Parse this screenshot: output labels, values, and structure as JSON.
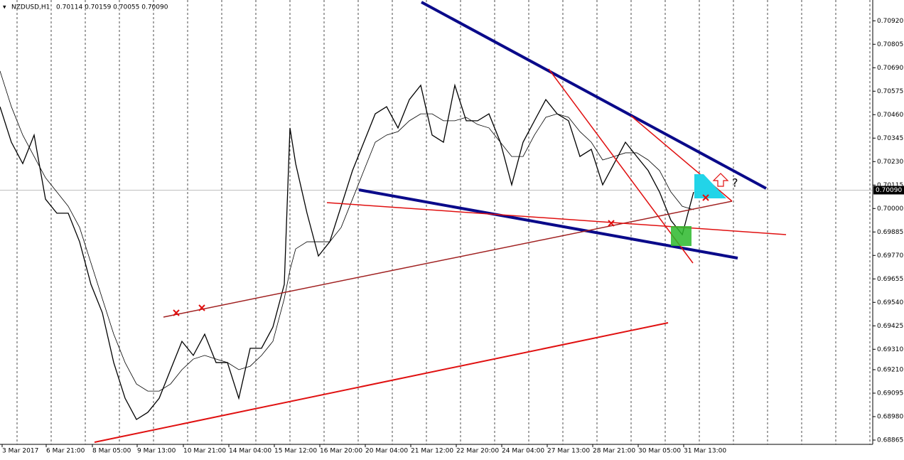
{
  "header": {
    "symbol": "NZDUSD,H1",
    "ohlc": "0.70114 0.70159 0.70055 0.70090"
  },
  "chart_data": {
    "type": "line",
    "x": [
      0,
      16,
      32,
      48,
      64,
      80,
      96,
      112,
      128,
      144,
      160,
      176,
      192,
      208,
      224,
      240,
      256,
      272,
      288,
      304,
      320,
      336,
      352,
      368,
      384,
      400,
      408,
      416,
      432,
      448,
      464,
      480,
      496,
      512,
      528,
      544,
      560,
      576,
      592,
      608,
      624,
      640,
      656,
      672,
      688,
      704,
      720,
      736,
      752,
      768,
      784,
      800,
      816,
      832,
      848,
      864,
      880,
      896,
      912,
      928,
      944,
      960,
      976
    ],
    "series": [
      {
        "color": "#000000",
        "values": [
          0.70499,
          0.70325,
          0.7022,
          0.7036,
          0.70046,
          0.69977,
          0.69977,
          0.69837,
          0.69628,
          0.69489,
          0.69245,
          0.6907,
          0.68966,
          0.69001,
          0.6907,
          0.6921,
          0.69349,
          0.6928,
          0.69384,
          0.69245,
          0.69245,
          0.6907,
          0.69315,
          0.69315,
          0.69419,
          0.69628,
          0.70395,
          0.7022,
          0.69977,
          0.69767,
          0.69837,
          0.70011,
          0.70186,
          0.70325,
          0.70464,
          0.70499,
          0.70395,
          0.70534,
          0.70604,
          0.7036,
          0.70325,
          0.70604,
          0.7043,
          0.7043,
          0.70464,
          0.70325,
          0.70116,
          0.70325,
          0.7043,
          0.70534,
          0.70464,
          0.7043,
          0.70255,
          0.7029,
          0.70116,
          0.7022,
          0.70325,
          0.70255,
          0.70186,
          0.70081,
          0.69942,
          0.69872,
          0.70081
        ]
      },
      {
        "color": "#000000",
        "values": [
          0.70674,
          0.70499,
          0.7036,
          0.70255,
          0.70151,
          0.70081,
          0.70011,
          0.69907,
          0.69733,
          0.69558,
          0.69384,
          0.69245,
          0.6914,
          0.69105,
          0.69105,
          0.6914,
          0.6921,
          0.69262,
          0.6928,
          0.69262,
          0.69245,
          0.6921,
          0.69227,
          0.6928,
          0.69349,
          0.69558,
          0.69698,
          0.69802,
          0.69837,
          0.69837,
          0.69837,
          0.69907,
          0.70046,
          0.70186,
          0.70325,
          0.7036,
          0.70377,
          0.7043,
          0.70464,
          0.70464,
          0.7043,
          0.7043,
          0.70447,
          0.70412,
          0.70395,
          0.70325,
          0.70255,
          0.70255,
          0.7036,
          0.70447,
          0.70464,
          0.70447,
          0.70377,
          0.70325,
          0.70238,
          0.70255,
          0.70273,
          0.70273,
          0.70238,
          0.70186,
          0.70081,
          0.70011,
          0.69994
        ]
      }
    ],
    "xlim": [
      0,
      1228
    ],
    "ylim": [
      0.68844,
      0.71022
    ],
    "yticks": [
      0.68865,
      {
        "value": 0.6898,
        "label": "0.68980"
      },
      0.69095,
      {
        "value": 0.6921,
        "label": "0.69210"
      },
      {
        "value": 0.6931,
        "label": "0.69310"
      },
      0.69425,
      {
        "value": 0.6954,
        "label": "0.69540"
      },
      0.69655,
      {
        "value": 0.6977,
        "label": "0.69770"
      },
      0.69885,
      {
        "value": 0.7,
        "label": "0.70000"
      },
      0.70115,
      {
        "value": 0.7023,
        "label": "0.70230"
      },
      0.70345,
      {
        "value": 0.7046,
        "label": "0.70460"
      },
      0.70575,
      {
        "value": 0.7069,
        "label": "0.70690"
      },
      0.70805,
      {
        "value": 0.7092,
        "label": "0.70920"
      }
    ],
    "xticks": [
      {
        "value": 3,
        "label": "3 Mar 2017"
      },
      {
        "value": 65,
        "label": "6 Mar 21:00"
      },
      {
        "value": 130,
        "label": "8 Mar 05:00"
      },
      {
        "value": 193,
        "label": "9 Mar 13:00"
      },
      {
        "value": 258,
        "label": "10 Mar 21:00"
      },
      {
        "value": 322,
        "label": "14 Mar 04:00"
      },
      {
        "value": 386,
        "label": "15 Mar 12:00"
      },
      {
        "value": 450,
        "label": "16 Mar 20:00"
      },
      {
        "value": 514,
        "label": "20 Mar 04:00"
      },
      {
        "value": 578,
        "label": "21 Mar 12:00"
      },
      {
        "value": 642,
        "label": "22 Mar 20:00"
      },
      {
        "value": 706,
        "label": "24 Mar 04:00"
      },
      {
        "value": 770,
        "label": "27 Mar 13:00"
      },
      {
        "value": 834,
        "label": "28 Mar 21:00"
      },
      {
        "value": 898,
        "label": "30 Mar 05:00"
      },
      {
        "value": 962,
        "label": "31 Mar 13:00"
      }
    ],
    "current_price": {
      "value": 0.7009,
      "label": "0.70090"
    },
    "annotation": "?"
  }
}
